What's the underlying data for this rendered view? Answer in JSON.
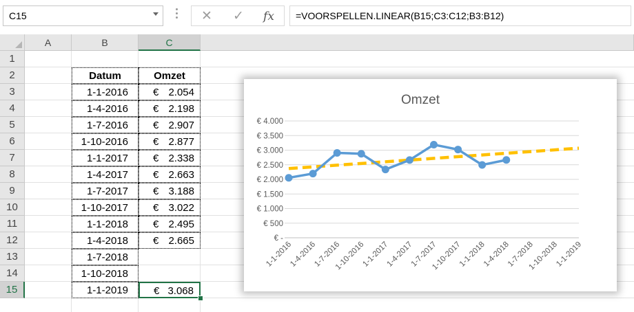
{
  "namebox": {
    "value": "C15"
  },
  "formula_bar": {
    "fx_label": "fx",
    "formula": "=VOORSPELLEN.LINEAR(B15;C3:C12;B3:B12)"
  },
  "columns": [
    "A",
    "B",
    "C"
  ],
  "selected_column": "C",
  "rows": [
    "1",
    "2",
    "3",
    "4",
    "5",
    "6",
    "7",
    "8",
    "9",
    "10",
    "11",
    "12",
    "13",
    "14",
    "15"
  ],
  "selected_row": "15",
  "table": {
    "headers": {
      "date": "Datum",
      "revenue": "Omzet"
    },
    "currency": "€",
    "rows": [
      {
        "date": "1-1-2016",
        "revenue": "2.054"
      },
      {
        "date": "1-4-2016",
        "revenue": "2.198"
      },
      {
        "date": "1-7-2016",
        "revenue": "2.907"
      },
      {
        "date": "1-10-2016",
        "revenue": "2.877"
      },
      {
        "date": "1-1-2017",
        "revenue": "2.338"
      },
      {
        "date": "1-4-2017",
        "revenue": "2.663"
      },
      {
        "date": "1-7-2017",
        "revenue": "3.188"
      },
      {
        "date": "1-10-2017",
        "revenue": "3.022"
      },
      {
        "date": "1-1-2018",
        "revenue": "2.495"
      },
      {
        "date": "1-4-2018",
        "revenue": "2.665"
      },
      {
        "date": "1-7-2018",
        "revenue": ""
      },
      {
        "date": "1-10-2018",
        "revenue": ""
      },
      {
        "date": "1-1-2019",
        "revenue": "3.068"
      }
    ]
  },
  "chart_data": {
    "type": "line",
    "title": "Omzet",
    "categories": [
      "1-1-2016",
      "1-4-2016",
      "1-7-2016",
      "1-10-2016",
      "1-1-2017",
      "1-4-2017",
      "1-7-2017",
      "1-10-2017",
      "1-1-2018",
      "1-4-2018",
      "1-7-2018",
      "1-10-2018",
      "1-1-2019"
    ],
    "series": [
      {
        "values": [
          2054,
          2198,
          2907,
          2877,
          2338,
          2663,
          3188,
          3022,
          2495,
          2665,
          null,
          null,
          null
        ],
        "color": "#5b9bd5",
        "style": "solid-markers"
      }
    ],
    "trendline": {
      "start": 2370,
      "end": 3068,
      "color": "#ffc000",
      "style": "dashed"
    },
    "ylim": [
      0,
      4000
    ],
    "yticks": [
      0,
      500,
      1000,
      1500,
      2000,
      2500,
      3000,
      3500,
      4000
    ],
    "ytick_labels": [
      "€ -",
      "€ 500",
      "€ 1.000",
      "€ 1.500",
      "€ 2.000",
      "€ 2.500",
      "€ 3.000",
      "€ 3.500",
      "€ 4.000"
    ],
    "grid": true,
    "xlabel": "",
    "ylabel": ""
  }
}
